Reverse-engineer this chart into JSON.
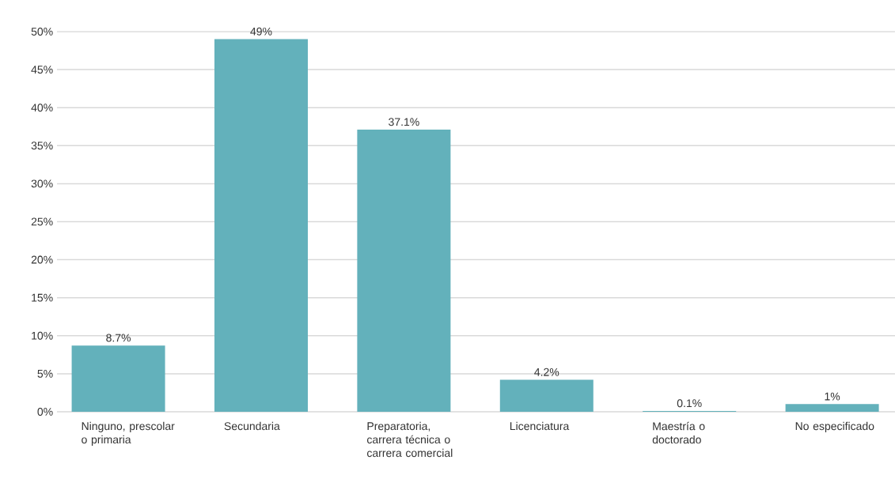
{
  "chart_data": {
    "type": "bar",
    "categories": [
      "Ninguno, prescolar o primaria",
      "Secundaria",
      "Preparatoria, carrera técnica o carrera comercial",
      "Licenciatura",
      "Maestría o doctorado",
      "No especificado"
    ],
    "values": [
      8.7,
      49,
      37.1,
      4.2,
      0.1,
      1
    ],
    "value_labels": [
      "8.7%",
      "49%",
      "37.1%",
      "4.2%",
      "0.1%",
      "1%"
    ],
    "color": "#63b1bb",
    "ylim": [
      0,
      50
    ],
    "yticks": [
      {
        "value": 0,
        "label": "0%"
      },
      {
        "value": 5,
        "label": "5%"
      },
      {
        "value": 10,
        "label": "10%"
      },
      {
        "value": 15,
        "label": "15%"
      },
      {
        "value": 20,
        "label": "20%"
      },
      {
        "value": 25,
        "label": "25%"
      },
      {
        "value": 30,
        "label": "30%"
      },
      {
        "value": 35,
        "label": "35%"
      },
      {
        "value": 40,
        "label": "40%"
      },
      {
        "value": 45,
        "label": "45%"
      },
      {
        "value": 50,
        "label": "50%"
      }
    ],
    "grid": "y"
  }
}
